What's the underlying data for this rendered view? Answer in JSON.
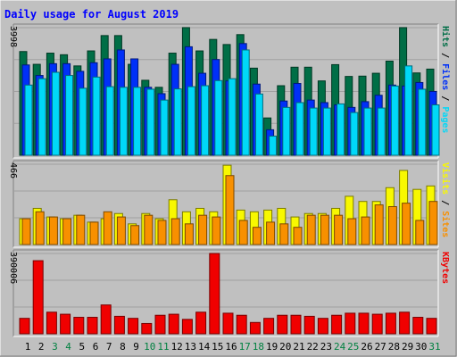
{
  "title": "Daily usage for August 2019",
  "colors": {
    "background": "#c0c0c0",
    "title": "#0000ff",
    "hits": "#006e46",
    "files": "#0030f8",
    "pages": "#00d8f8",
    "visits": "#f8f800",
    "sites": "#f89000",
    "kbytes": "#f00000",
    "weekday_label": "#000000",
    "weekend_label": "#008040"
  },
  "chart_data": [
    {
      "type": "bar",
      "panel": "top",
      "ymax_label": "3998",
      "ylim": [
        0,
        3998
      ],
      "side_label_parts": [
        {
          "text": "Pages",
          "color_key": "pages"
        },
        {
          "text": " / ",
          "color_key": "weekday_label"
        },
        {
          "text": "Files",
          "color_key": "files"
        },
        {
          "text": " / ",
          "color_key": "weekday_label"
        },
        {
          "text": "Hits",
          "color_key": "hits"
        }
      ],
      "categories": [
        "1",
        "2",
        "3",
        "4",
        "5",
        "6",
        "7",
        "8",
        "9",
        "10",
        "11",
        "12",
        "13",
        "14",
        "15",
        "16",
        "17",
        "18",
        "19",
        "20",
        "21",
        "22",
        "23",
        "24",
        "25",
        "26",
        "27",
        "28",
        "29",
        "30",
        "31"
      ],
      "series": [
        {
          "name": "Hits",
          "color_key": "hits",
          "values": [
            3250,
            2850,
            3200,
            3150,
            2800,
            3270,
            3750,
            3750,
            2850,
            2350,
            2130,
            3200,
            4000,
            3270,
            3630,
            3470,
            3780,
            2730,
            1170,
            2180,
            2760,
            2760,
            2330,
            2840,
            2470,
            2480,
            2570,
            2950,
            4000,
            2580,
            2700
          ]
        },
        {
          "name": "Files",
          "color_key": "files",
          "values": [
            2830,
            2500,
            2870,
            2870,
            2630,
            2900,
            3020,
            3300,
            3020,
            2130,
            1930,
            2850,
            3400,
            2570,
            3000,
            2330,
            3500,
            2230,
            800,
            1700,
            2250,
            1730,
            1650,
            1580,
            1500,
            1680,
            1880,
            2200,
            2170,
            2280,
            2000
          ]
        },
        {
          "name": "Pages",
          "color_key": "pages",
          "values": [
            2200,
            2400,
            2600,
            2500,
            2100,
            2450,
            2150,
            2130,
            2130,
            2070,
            1730,
            2080,
            2150,
            2180,
            2340,
            2400,
            3300,
            1920,
            600,
            1500,
            1650,
            1480,
            1480,
            1610,
            1340,
            1480,
            1480,
            2170,
            2800,
            2070,
            1580
          ]
        }
      ]
    },
    {
      "type": "bar",
      "panel": "middle",
      "ymax_label": "466",
      "ylim": [
        0,
        466
      ],
      "side_label_parts": [
        {
          "text": "Sites",
          "color_key": "sites"
        },
        {
          "text": " / ",
          "color_key": "weekday_label"
        },
        {
          "text": "Visits",
          "color_key": "visits"
        }
      ],
      "categories": [
        "1",
        "2",
        "3",
        "4",
        "5",
        "6",
        "7",
        "8",
        "9",
        "10",
        "11",
        "12",
        "13",
        "14",
        "15",
        "16",
        "17",
        "18",
        "19",
        "20",
        "21",
        "22",
        "23",
        "24",
        "25",
        "26",
        "27",
        "28",
        "29",
        "30",
        "31"
      ],
      "series": [
        {
          "name": "Visits",
          "color_key": "visits",
          "values": [
            150,
            210,
            160,
            150,
            170,
            130,
            150,
            180,
            120,
            180,
            150,
            260,
            190,
            210,
            190,
            460,
            200,
            190,
            200,
            210,
            160,
            180,
            180,
            210,
            280,
            250,
            250,
            330,
            430,
            320,
            340
          ]
        },
        {
          "name": "Sites",
          "color_key": "sites",
          "values": [
            150,
            190,
            160,
            150,
            170,
            130,
            190,
            160,
            110,
            170,
            140,
            150,
            120,
            170,
            160,
            400,
            140,
            100,
            130,
            120,
            100,
            170,
            170,
            170,
            150,
            160,
            230,
            220,
            240,
            140,
            250
          ]
        }
      ]
    },
    {
      "type": "bar",
      "panel": "bottom",
      "ymax_label": "390006",
      "ylim": [
        0,
        390006
      ],
      "side_label_parts": [
        {
          "text": "KBytes",
          "color_key": "kbytes"
        }
      ],
      "categories": [
        "1",
        "2",
        "3",
        "4",
        "5",
        "6",
        "7",
        "8",
        "9",
        "10",
        "11",
        "12",
        "13",
        "14",
        "15",
        "16",
        "17",
        "18",
        "19",
        "20",
        "21",
        "22",
        "23",
        "24",
        "25",
        "26",
        "27",
        "28",
        "29",
        "30",
        "31"
      ],
      "series": [
        {
          "name": "KBytes",
          "color_key": "kbytes",
          "values": [
            75000,
            355000,
            105000,
            95000,
            80000,
            80000,
            140000,
            85000,
            75000,
            50000,
            90000,
            95000,
            70000,
            105000,
            390000,
            100000,
            90000,
            55000,
            75000,
            90000,
            90000,
            85000,
            75000,
            90000,
            100000,
            100000,
            95000,
            100000,
            105000,
            80000,
            75000
          ]
        }
      ]
    }
  ],
  "weekend_days": [
    "3",
    "4",
    "10",
    "11",
    "17",
    "18",
    "24",
    "25",
    "31"
  ]
}
